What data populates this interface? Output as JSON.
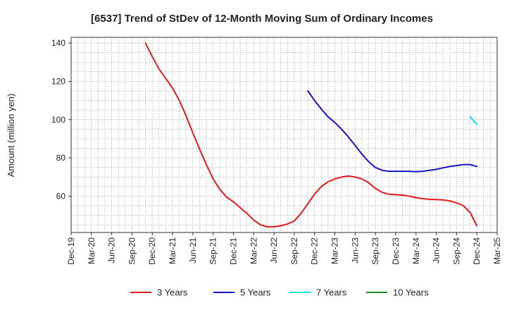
{
  "chart_data": {
    "type": "line",
    "title": "[6537]  Trend of StDev of 12-Month Moving Sum of Ordinary Incomes",
    "xlabel": "",
    "ylabel": "Amount (million yen)",
    "ylim": [
      41,
      143
    ],
    "yticks": [
      60,
      80,
      100,
      120,
      140
    ],
    "x_range": [
      "2019-12",
      "2025-03"
    ],
    "x_ticks": [
      "Dec-19",
      "Mar-20",
      "Jun-20",
      "Sep-20",
      "Dec-20",
      "Mar-21",
      "Jun-21",
      "Sep-21",
      "Dec-21",
      "Mar-22",
      "Jun-22",
      "Sep-22",
      "Dec-22",
      "Mar-23",
      "Jun-23",
      "Sep-23",
      "Dec-23",
      "Mar-24",
      "Jun-24",
      "Sep-24",
      "Dec-24",
      "Mar-25"
    ],
    "grid": true,
    "legend_position": "bottom",
    "series": [
      {
        "name": "3 Years",
        "color": "#e31a1c",
        "points": [
          [
            "2020-11",
            140
          ],
          [
            "2020-12",
            133
          ],
          [
            "2021-01",
            126.5
          ],
          [
            "2021-02",
            121.5
          ],
          [
            "2021-03",
            116.5
          ],
          [
            "2021-04",
            110
          ],
          [
            "2021-05",
            102
          ],
          [
            "2021-06",
            93
          ],
          [
            "2021-07",
            84.5
          ],
          [
            "2021-08",
            76.5
          ],
          [
            "2021-09",
            69
          ],
          [
            "2021-10",
            63.5
          ],
          [
            "2021-11",
            59.5
          ],
          [
            "2021-12",
            57
          ],
          [
            "2022-01",
            54
          ],
          [
            "2022-02",
            51
          ],
          [
            "2022-03",
            47.5
          ],
          [
            "2022-04",
            45
          ],
          [
            "2022-05",
            44
          ],
          [
            "2022-06",
            44
          ],
          [
            "2022-07",
            44.5
          ],
          [
            "2022-08",
            45.5
          ],
          [
            "2022-09",
            47
          ],
          [
            "2022-10",
            51
          ],
          [
            "2022-11",
            56
          ],
          [
            "2022-12",
            61
          ],
          [
            "2023-01",
            65
          ],
          [
            "2023-02",
            67.5
          ],
          [
            "2023-03",
            69
          ],
          [
            "2023-04",
            70
          ],
          [
            "2023-05",
            70.5
          ],
          [
            "2023-06",
            70
          ],
          [
            "2023-07",
            69
          ],
          [
            "2023-08",
            67
          ],
          [
            "2023-09",
            64
          ],
          [
            "2023-10",
            62
          ],
          [
            "2023-11",
            61
          ],
          [
            "2023-12",
            60.8
          ],
          [
            "2024-01",
            60.5
          ],
          [
            "2024-02",
            60
          ],
          [
            "2024-03",
            59.2
          ],
          [
            "2024-04",
            58.7
          ],
          [
            "2024-05",
            58.3
          ],
          [
            "2024-06",
            58.2
          ],
          [
            "2024-07",
            58
          ],
          [
            "2024-08",
            57.5
          ],
          [
            "2024-09",
            56.5
          ],
          [
            "2024-10",
            55
          ],
          [
            "2024-11",
            51.5
          ],
          [
            "2024-12",
            44.5
          ]
        ]
      },
      {
        "name": "5 Years",
        "color": "#1414c8",
        "points": [
          [
            "2022-11",
            115
          ],
          [
            "2022-12",
            110
          ],
          [
            "2023-01",
            105.5
          ],
          [
            "2023-02",
            101.5
          ],
          [
            "2023-03",
            98.5
          ],
          [
            "2023-04",
            95
          ],
          [
            "2023-05",
            91
          ],
          [
            "2023-06",
            86.5
          ],
          [
            "2023-07",
            82
          ],
          [
            "2023-08",
            78
          ],
          [
            "2023-09",
            75
          ],
          [
            "2023-10",
            73.5
          ],
          [
            "2023-11",
            73
          ],
          [
            "2023-12",
            73
          ],
          [
            "2024-01",
            73
          ],
          [
            "2024-02",
            73
          ],
          [
            "2024-03",
            72.8
          ],
          [
            "2024-04",
            73
          ],
          [
            "2024-05",
            73.5
          ],
          [
            "2024-06",
            74
          ],
          [
            "2024-07",
            74.8
          ],
          [
            "2024-08",
            75.5
          ],
          [
            "2024-09",
            76
          ],
          [
            "2024-10",
            76.5
          ],
          [
            "2024-11",
            76.5
          ],
          [
            "2024-12",
            75.5
          ]
        ]
      },
      {
        "name": "7 Years",
        "color": "#00e5e5",
        "points": [
          [
            "2024-11",
            101.5
          ],
          [
            "2024-12",
            97.5
          ]
        ]
      },
      {
        "name": "10 Years",
        "color": "#1e8c1e",
        "points": []
      }
    ]
  }
}
